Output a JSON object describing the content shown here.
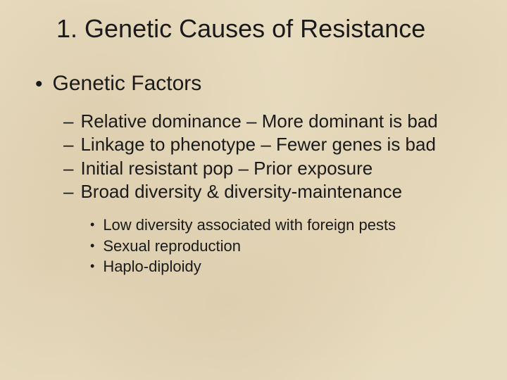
{
  "colors": {
    "background": "#e8dcc0",
    "text": "#1a1a1a"
  },
  "typography": {
    "family": "Arial",
    "title_size_pt": 36,
    "level1_size_pt": 30,
    "level2_size_pt": 26,
    "level3_size_pt": 22
  },
  "title": "1. Genetic Causes of Resistance",
  "level1": {
    "bullet": "•",
    "text": "Genetic Factors"
  },
  "level2": {
    "dash": "–",
    "items": [
      "Relative dominance – More dominant is bad",
      "Linkage to phenotype – Fewer genes is bad",
      "Initial resistant pop – Prior exposure",
      "Broad diversity & diversity-maintenance"
    ]
  },
  "level3": {
    "bullet": "•",
    "items": [
      "Low diversity associated with foreign pests",
      "Sexual reproduction",
      "Haplo-diploidy"
    ]
  }
}
